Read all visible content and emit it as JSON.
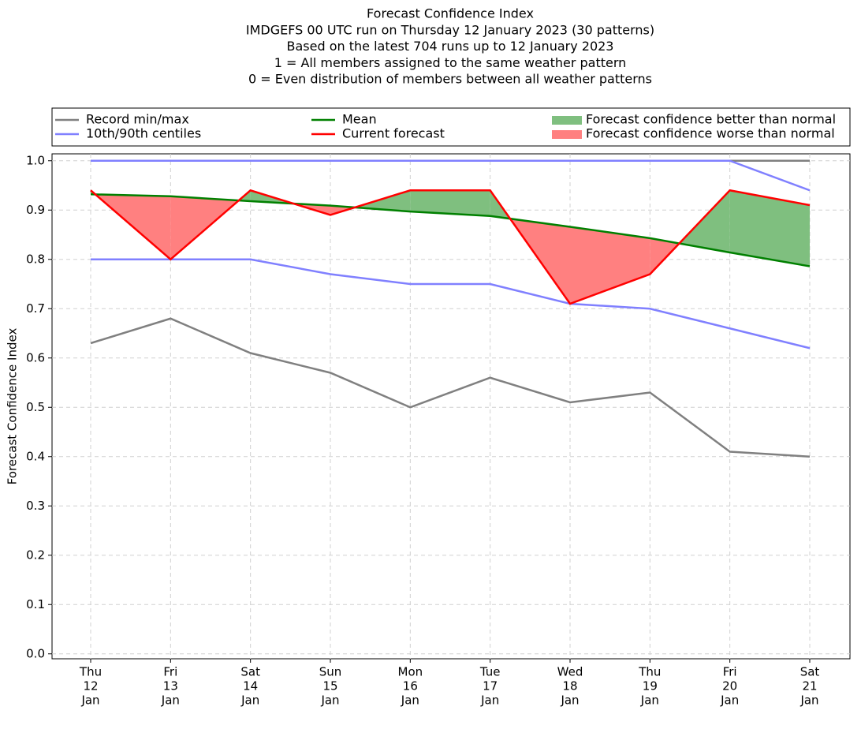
{
  "chart_data": {
    "type": "line",
    "title": [
      "Forecast Confidence Index",
      "IMDGEFS 00 UTC run on Thursday 12 January 2023 (30 patterns)",
      "Based on the latest 704 runs up to 12 January 2023",
      "1 = All members assigned to the same weather pattern",
      "0 = Even distribution of members between all weather patterns"
    ],
    "ylabel": "Forecast Confidence Index",
    "categories": [
      [
        "Thu",
        "12",
        "Jan"
      ],
      [
        "Fri",
        "13",
        "Jan"
      ],
      [
        "Sat",
        "14",
        "Jan"
      ],
      [
        "Sun",
        "15",
        "Jan"
      ],
      [
        "Mon",
        "16",
        "Jan"
      ],
      [
        "Tue",
        "17",
        "Jan"
      ],
      [
        "Wed",
        "18",
        "Jan"
      ],
      [
        "Thu",
        "19",
        "Jan"
      ],
      [
        "Fri",
        "20",
        "Jan"
      ],
      [
        "Sat",
        "21",
        "Jan"
      ]
    ],
    "series": [
      {
        "name": "Record min/max",
        "color": "#808080",
        "lines": [
          [
            0.63,
            0.68,
            0.61,
            0.57,
            0.5,
            0.56,
            0.51,
            0.53,
            0.41,
            0.4
          ],
          [
            1.0,
            1.0,
            1.0,
            1.0,
            1.0,
            1.0,
            1.0,
            1.0,
            1.0,
            1.0
          ]
        ]
      },
      {
        "name": "10th/90th centiles",
        "color": "#8080ff",
        "lines": [
          [
            0.8,
            0.8,
            0.8,
            0.77,
            0.75,
            0.75,
            0.71,
            0.7,
            0.66,
            0.62
          ],
          [
            1.0,
            1.0,
            1.0,
            1.0,
            1.0,
            1.0,
            1.0,
            1.0,
            1.0,
            0.94
          ]
        ]
      },
      {
        "name": "Mean",
        "color": "#008000",
        "lines": [
          [
            0.932,
            0.928,
            0.918,
            0.909,
            0.897,
            0.888,
            0.866,
            0.843,
            0.814,
            0.786
          ]
        ]
      },
      {
        "name": "Current forecast",
        "color": "#ff0000",
        "lines": [
          [
            0.94,
            0.8,
            0.94,
            0.89,
            0.94,
            0.94,
            0.71,
            0.77,
            0.94,
            0.91
          ]
        ]
      }
    ],
    "fills": [
      {
        "name": "Forecast confidence better than normal",
        "color": "#7fbf7f"
      },
      {
        "name": "Forecast confidence worse than normal",
        "color": "#ff8080"
      }
    ],
    "ylim": [
      -0.01,
      1.014
    ],
    "yticks": [
      {
        "value": 0,
        "label": "0.0"
      },
      0.1,
      0.2,
      0.3,
      0.4,
      0.5,
      0.6,
      0.7,
      0.8,
      0.9,
      {
        "value": 1,
        "label": "1.0"
      }
    ],
    "grid": true,
    "legend": "top"
  }
}
